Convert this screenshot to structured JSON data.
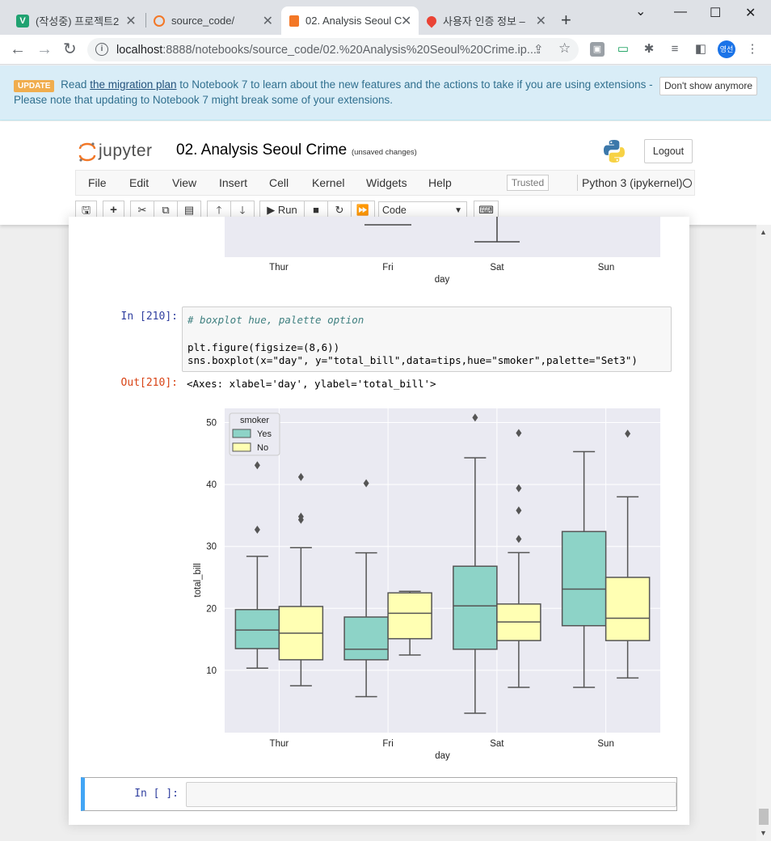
{
  "browser": {
    "tabs": [
      {
        "title": "(작성중) 프로젝트2",
        "favicon": "V",
        "favicon_color": "#20a271"
      },
      {
        "title": "source_code/",
        "favicon": "jupyter",
        "favicon_color": "#f37726"
      },
      {
        "title": "02. Analysis Seoul C",
        "favicon": "jupyter-notebook",
        "favicon_color": "#f37726",
        "active": true
      },
      {
        "title": "사용자 인증 정보 –",
        "favicon": "maps-pin",
        "favicon_color": "#ea4335"
      }
    ],
    "url_host": "localhost",
    "url_rest": ":8888/notebooks/source_code/02.%20Analysis%20Seoul%20Crime.ip...",
    "profile_initials": "영선"
  },
  "banner": {
    "badge": "UPDATE",
    "text_before_link": "Read",
    "link_text": "the migration plan",
    "text_after_link": "to Notebook 7 to learn about the new features and the actions to take if you are using extensions -",
    "line2": "Please note that updating to Notebook 7 might break some of your extensions.",
    "dismiss_label": "Don't show anymore"
  },
  "jupyter": {
    "logo_text": "jupyter",
    "notebook_name": "02. Analysis Seoul Crime",
    "autosave_status": "(unsaved changes)",
    "logout_label": "Logout",
    "menu": [
      "File",
      "Edit",
      "View",
      "Insert",
      "Cell",
      "Kernel",
      "Widgets",
      "Help"
    ],
    "trusted_label": "Trusted",
    "kernel_name": "Python 3 (ipykernel)",
    "run_label": "Run",
    "cell_type": "Code"
  },
  "cells": {
    "prev_xlabels": [
      "Thur",
      "Fri",
      "Sat",
      "Sun"
    ],
    "prev_xaxis_label": "day",
    "in_prompt": "In [210]:",
    "out_prompt": "Out[210]:",
    "code_comment": "# boxplot hue, palette option",
    "code_line2": "plt.figure(figsize=(8,6))",
    "code_line3": "sns.boxplot(x=\"day\", y=\"total_bill\",data=tips,hue=\"smoker\",palette=\"Set3\")",
    "output_text": "<Axes: xlabel='day', ylabel='total_bill'>",
    "empty_prompt": "In [ ]:"
  },
  "chart_data": {
    "type": "boxplot",
    "title": "",
    "xlabel": "day",
    "ylabel": "total_bill",
    "categories": [
      "Thur",
      "Fri",
      "Sat",
      "Sun"
    ],
    "ylim": [
      0,
      52
    ],
    "yticks": [
      10,
      20,
      30,
      40,
      50
    ],
    "grid": true,
    "background": "#eaeaf2",
    "legend": {
      "title": "smoker",
      "position": "top-left"
    },
    "series": [
      {
        "name": "Yes",
        "color": "#8dd3c7",
        "boxes": [
          {
            "whisker_low": 10.34,
            "q1": 13.5,
            "median": 16.5,
            "q3": 19.8,
            "whisker_high": 28.4,
            "outliers": [
              32.7,
              43.1
            ]
          },
          {
            "whisker_low": 5.75,
            "q1": 11.7,
            "median": 13.4,
            "q3": 18.6,
            "whisker_high": 28.97,
            "outliers": [
              40.2
            ]
          },
          {
            "whisker_low": 3.07,
            "q1": 13.4,
            "median": 20.4,
            "q3": 26.8,
            "whisker_high": 44.3,
            "outliers": [
              50.8
            ]
          },
          {
            "whisker_low": 7.25,
            "q1": 17.2,
            "median": 23.1,
            "q3": 32.4,
            "whisker_high": 45.3,
            "outliers": []
          }
        ]
      },
      {
        "name": "No",
        "color": "#ffffb3",
        "boxes": [
          {
            "whisker_low": 7.51,
            "q1": 11.7,
            "median": 16.0,
            "q3": 20.3,
            "whisker_high": 29.8,
            "outliers": [
              34.3,
              34.8,
              41.2
            ]
          },
          {
            "whisker_low": 12.46,
            "q1": 15.1,
            "median": 19.2,
            "q3": 22.5,
            "whisker_high": 22.75,
            "outliers": []
          },
          {
            "whisker_low": 7.25,
            "q1": 14.8,
            "median": 17.8,
            "q3": 20.7,
            "whisker_high": 29.0,
            "outliers": [
              31.2,
              35.8,
              39.4,
              48.3
            ]
          },
          {
            "whisker_low": 8.77,
            "q1": 14.8,
            "median": 18.4,
            "q3": 25.0,
            "whisker_high": 38.0,
            "outliers": [
              48.2
            ]
          }
        ]
      }
    ]
  }
}
